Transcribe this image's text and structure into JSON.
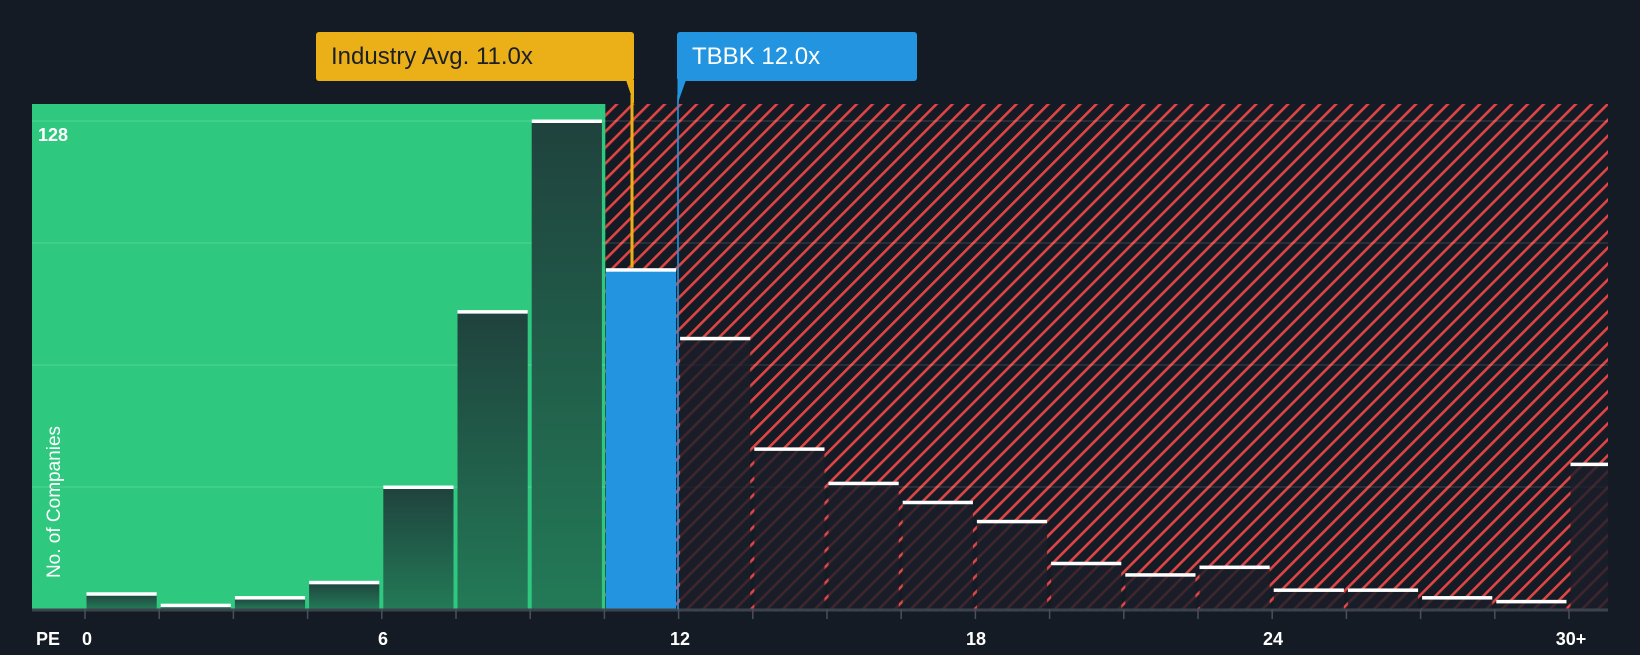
{
  "chart_data": {
    "type": "bar",
    "title": "",
    "xlabel": "PE",
    "ylabel": "No. of Companies",
    "ylim": [
      0,
      128
    ],
    "grid": true,
    "bin_width": 1.5,
    "categories": [
      "0-1.5",
      "1.5-3",
      "3-4.5",
      "4.5-6",
      "6-7.5",
      "7.5-9",
      "9-10.5",
      "10.5-12",
      "12-13.5",
      "13.5-15",
      "15-16.5",
      "16.5-18",
      "18-19.5",
      "19.5-21",
      "21-22.5",
      "22.5-24",
      "24-25.5",
      "25.5-27",
      "27-28.5",
      "28.5-30",
      "30+"
    ],
    "values": [
      4,
      1,
      3,
      7,
      32,
      78,
      128,
      89,
      71,
      42,
      33,
      28,
      23,
      12,
      9,
      11,
      5,
      5,
      3,
      2,
      38
    ],
    "highlight_index": 7,
    "x_tick_labels": [
      "0",
      "6",
      "12",
      "18",
      "24",
      "30+"
    ],
    "y_tick_labels": [
      "128"
    ],
    "annotations": [
      {
        "label": "Industry Avg. 11.0x",
        "x": 11.0,
        "color": "#ebb017"
      },
      {
        "label": "TBBK 12.0x",
        "x": 12.0,
        "color": "#2394e0"
      }
    ],
    "regions": [
      {
        "name": "undervalued",
        "x_range": [
          0,
          10.5
        ],
        "color": "#2ec97f"
      },
      {
        "name": "overvalued",
        "x_range": [
          10.5,
          31.5
        ],
        "pattern": "red-hatch",
        "color": "#e04545"
      }
    ]
  },
  "labels": {
    "industry": "Industry Avg. 11.0x",
    "company": "TBBK 12.0x",
    "y_axis": "No. of Companies",
    "y_max": "128",
    "x_axis_prefix": "PE",
    "x_ticks": [
      "0",
      "6",
      "12",
      "18",
      "24",
      "30+"
    ]
  },
  "colors": {
    "background": "#151b24",
    "green": "#2ec97f",
    "green_bar": "#21473f",
    "blue": "#2394e0",
    "yellow": "#ebb017",
    "hatch": "#e04545"
  }
}
